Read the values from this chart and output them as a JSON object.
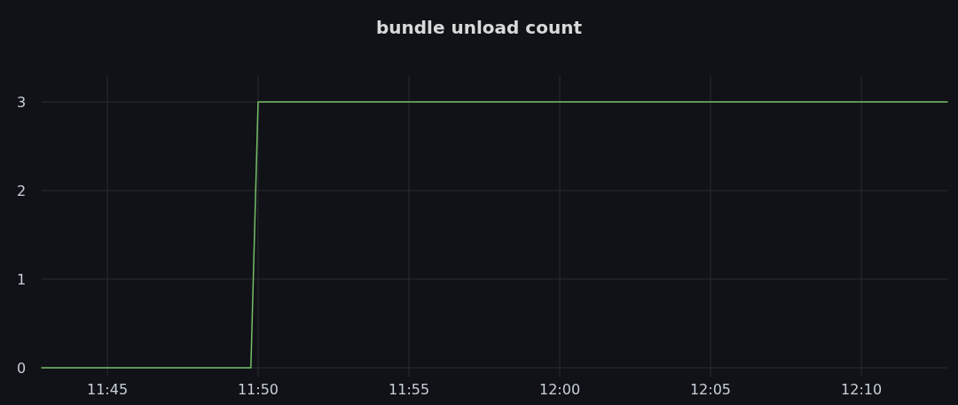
{
  "chart_data": {
    "type": "line",
    "title": "bundle unload count",
    "x": [
      11.7137,
      11.8293,
      11.8333,
      12.2142
    ],
    "series": [
      {
        "color": "#73bf69",
        "values": [
          0,
          0,
          3,
          3
        ]
      }
    ],
    "xlim": [
      11.7137,
      12.2142
    ],
    "xticks": [
      {
        "value": 11.75,
        "label": "11:45"
      },
      {
        "value": 11.8333,
        "label": "11:50"
      },
      {
        "value": 11.9167,
        "label": "11:55"
      },
      {
        "value": 12,
        "label": "12:00"
      },
      {
        "value": 12.0833,
        "label": "12:05"
      },
      {
        "value": 12.1667,
        "label": "12:10"
      }
    ],
    "ylim": [
      -0.1,
      3.3
    ],
    "yticks": [
      0,
      1,
      2,
      3
    ],
    "grid": true,
    "marker": "none",
    "line_style": "solid"
  }
}
